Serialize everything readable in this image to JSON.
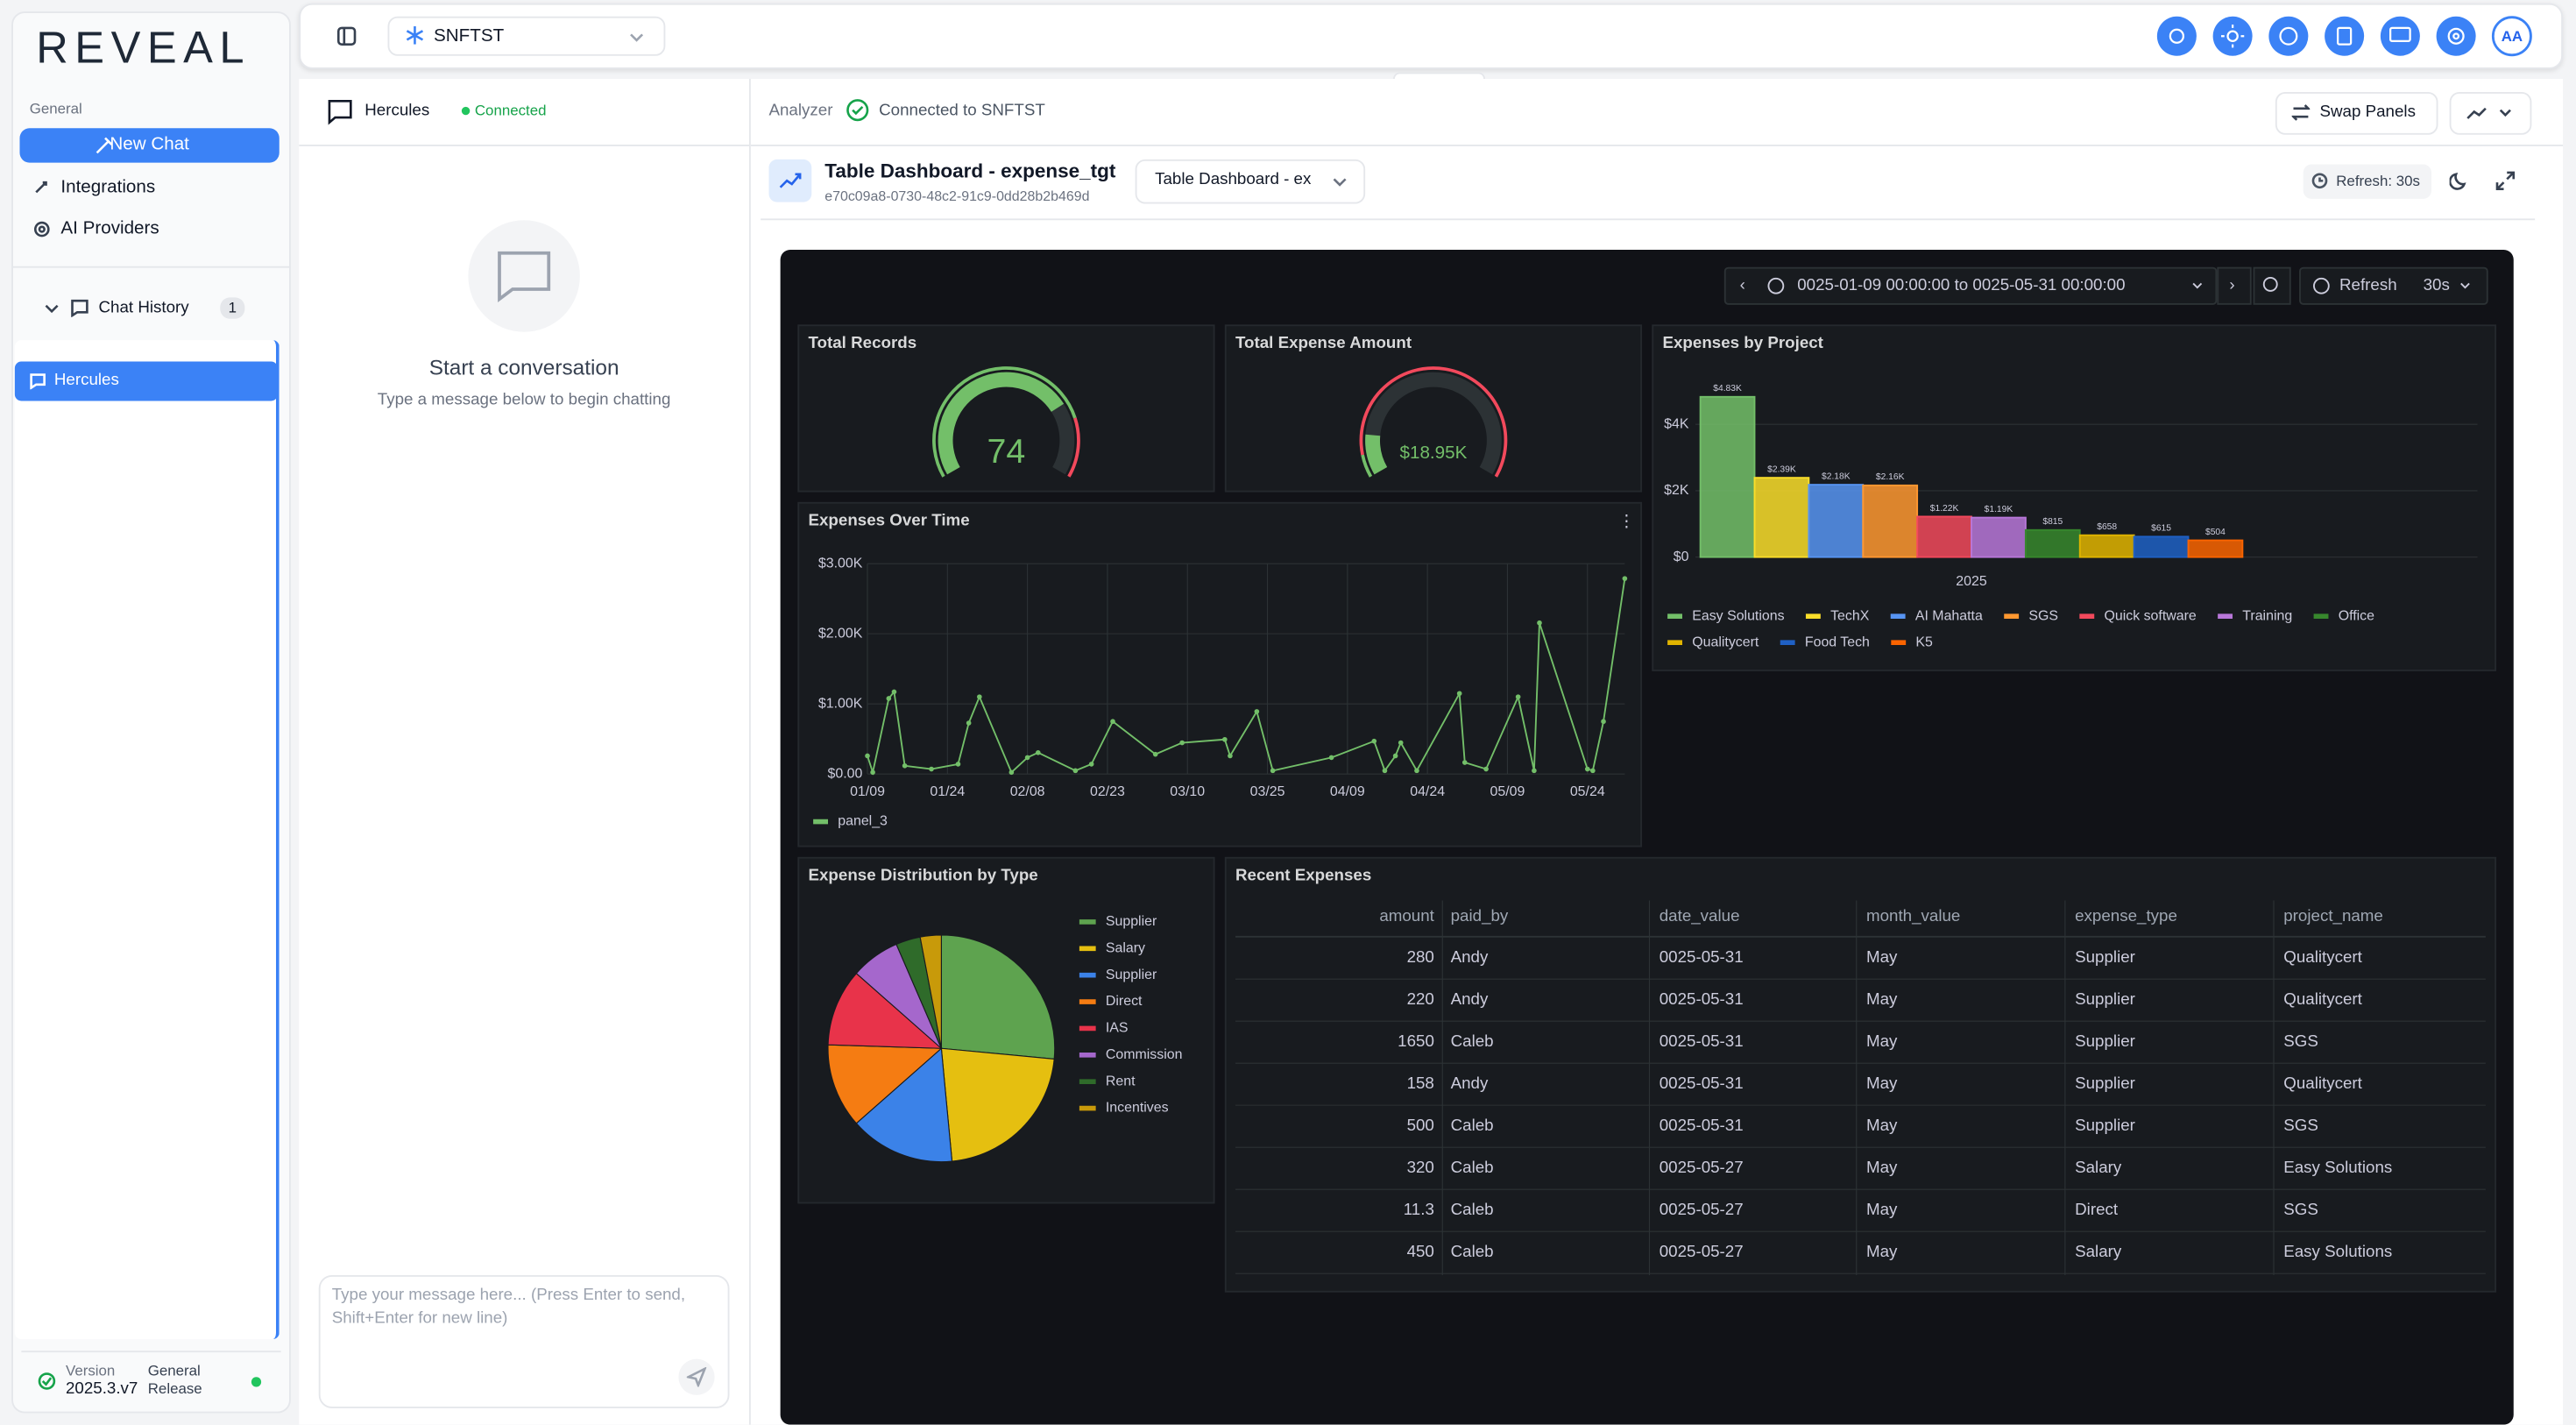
{
  "sidebar": {
    "logo": "REVEAL",
    "section": "General",
    "new_chat": "New Chat",
    "integrations": "Integrations",
    "ai_providers": "AI Providers",
    "chat_history": "Chat History",
    "chat_count": 1,
    "chats": [
      "Hercules"
    ],
    "version_label": "Version",
    "version": "2025.3.v7",
    "release": "General Release"
  },
  "topbar": {
    "connection": "SNFTST",
    "avatar": "AA"
  },
  "chat": {
    "agent": "Hercules",
    "status": "Connected",
    "empty_title": "Start a conversation",
    "empty_hint": "Type a message below to begin chatting",
    "input_placeholder": "Type your message here... (Press Enter to send, Shift+Enter for new line)"
  },
  "analyzer": {
    "label": "Analyzer",
    "status": "Connected to SNFTST",
    "swap": "Swap Panels",
    "dashboard_title": "Table Dashboard - expense_tgt",
    "dashboard_id": "e70c09a8-0730-48c2-91c9-0dd28b2b469d",
    "dashboard_select": "Table Dashboard - ex",
    "refresh_badge": "Refresh: 30s"
  },
  "dashboard": {
    "time_range": "0025-01-09 00:00:00 to 0025-05-31 00:00:00",
    "refresh": "Refresh",
    "interval": "30s"
  },
  "chart_data": [
    {
      "type": "gauge",
      "title": "Total Records",
      "value": 74,
      "range": [
        0,
        100
      ],
      "threshold": 80,
      "color": "#73bf69",
      "threshold_color": "#f2495c"
    },
    {
      "type": "gauge",
      "title": "Total Expense Amount",
      "value": 18950,
      "value_label": "$18.95K",
      "range": [
        0,
        130000
      ],
      "threshold": 10000,
      "color": "#73bf69",
      "threshold_color": "#f2495c"
    },
    {
      "type": "bar",
      "title": "Expenses by Project",
      "categories": [
        "2025"
      ],
      "series": [
        {
          "name": "Easy Solutions",
          "color": "#73bf69",
          "values": [
            4830
          ],
          "value_labels": [
            "$4.83K"
          ]
        },
        {
          "name": "TechX",
          "color": "#fade2a",
          "values": [
            2390
          ],
          "value_labels": [
            "$2.39K"
          ]
        },
        {
          "name": "AI Mahatta",
          "color": "#5794f2",
          "values": [
            2180
          ],
          "value_labels": [
            "$2.18K"
          ]
        },
        {
          "name": "SGS",
          "color": "#ff9830",
          "values": [
            2160
          ],
          "value_labels": [
            "$2.16K"
          ]
        },
        {
          "name": "Quick software",
          "color": "#f2495c",
          "values": [
            1220
          ],
          "value_labels": [
            "$1.22K"
          ]
        },
        {
          "name": "Training",
          "color": "#b877d9",
          "values": [
            1190
          ],
          "value_labels": [
            "$1.19K"
          ]
        },
        {
          "name": "Office",
          "color": "#37872d",
          "values": [
            815
          ],
          "value_labels": [
            "$815"
          ]
        },
        {
          "name": "Qualitycert",
          "color": "#e0b400",
          "values": [
            658
          ],
          "value_labels": [
            "$658"
          ]
        },
        {
          "name": "Food Tech",
          "color": "#1f60c4",
          "values": [
            615
          ],
          "value_labels": [
            "$615"
          ]
        },
        {
          "name": "K5",
          "color": "#fa6400",
          "values": [
            504
          ],
          "value_labels": [
            "$504"
          ]
        }
      ],
      "ylim": [
        0,
        5300
      ],
      "yticks": [
        {
          "value": 0,
          "label": "$0"
        },
        {
          "value": 2000,
          "label": "$2K"
        },
        {
          "value": 4000,
          "label": "$4K"
        }
      ],
      "grid": true
    },
    {
      "type": "line",
      "title": "Expenses Over Time",
      "x": [
        "01/09",
        "01/10",
        "01/13",
        "01/14",
        "01/16",
        "01/21",
        "01/26",
        "01/28",
        "01/30",
        "02/05",
        "02/08",
        "02/10",
        "02/17",
        "02/20",
        "02/24",
        "03/04",
        "03/09",
        "03/17",
        "03/18",
        "03/23",
        "03/26",
        "04/06",
        "04/14",
        "04/16",
        "04/18",
        "04/19",
        "04/22",
        "04/30",
        "05/01",
        "05/05",
        "05/11",
        "05/14",
        "05/15",
        "05/24",
        "05/25",
        "05/27",
        "05/31"
      ],
      "series": [
        {
          "name": "panel_3",
          "color": "#73bf69",
          "values": [
            258,
            23,
            1077,
            1171,
            117,
            70,
            140,
            726,
            1100,
            23,
            234,
            304,
            47,
            140,
            749,
            281,
            445,
            492,
            258,
            890,
            47,
            234,
            468,
            47,
            258,
            445,
            47,
            1148,
            164,
            70,
            1100,
            47,
            2155,
            70,
            47,
            749,
            2787
          ]
        }
      ],
      "xlim": [
        "01/09",
        "05/31"
      ],
      "xticks": [
        "01/09",
        "01/24",
        "02/08",
        "02/23",
        "03/10",
        "03/25",
        "04/09",
        "04/24",
        "05/09",
        "05/24"
      ],
      "ylim": [
        0,
        3000
      ],
      "yticks": [
        {
          "value": 0,
          "label": "$0.00"
        },
        {
          "value": 1000,
          "label": "$1.00K"
        },
        {
          "value": 2000,
          "label": "$2.00K"
        },
        {
          "value": 3000,
          "label": "$3.00K"
        }
      ],
      "grid": true
    },
    {
      "type": "pie",
      "title": "Expense Distribution by Type",
      "categories": [
        "Supplier",
        "Salary",
        "Supplier",
        "Direct",
        "IAS",
        "Commission",
        "Rent",
        "Incentives"
      ],
      "values": [
        26.5,
        22,
        15,
        12,
        11,
        7,
        3.5,
        3
      ],
      "colors": [
        "#5ea34f",
        "#e5bf10",
        "#3b82e8",
        "#f57c12",
        "#e8334a",
        "#a567cc",
        "#2f6b2a",
        "#c89a0a"
      ]
    }
  ],
  "table": {
    "title": "Recent Expenses",
    "columns": [
      "amount",
      "paid_by",
      "date_value",
      "month_value",
      "expense_type",
      "project_name"
    ],
    "rows": [
      [
        280,
        "Andy",
        "0025-05-31",
        "May",
        "Supplier",
        "Qualitycert"
      ],
      [
        220,
        "Andy",
        "0025-05-31",
        "May",
        "Supplier",
        "Qualitycert"
      ],
      [
        1650,
        "Caleb",
        "0025-05-31",
        "May",
        "Supplier",
        "SGS"
      ],
      [
        158,
        "Andy",
        "0025-05-31",
        "May",
        "Supplier",
        "Qualitycert"
      ],
      [
        500,
        "Caleb",
        "0025-05-31",
        "May",
        "Supplier",
        "SGS"
      ],
      [
        320,
        "Caleb",
        "0025-05-27",
        "May",
        "Salary",
        "Easy Solutions"
      ],
      [
        11.3,
        "Caleb",
        "0025-05-27",
        "May",
        "Direct",
        "SGS"
      ],
      [
        450,
        "Caleb",
        "0025-05-27",
        "May",
        "Salary",
        "Easy Solutions"
      ]
    ]
  }
}
